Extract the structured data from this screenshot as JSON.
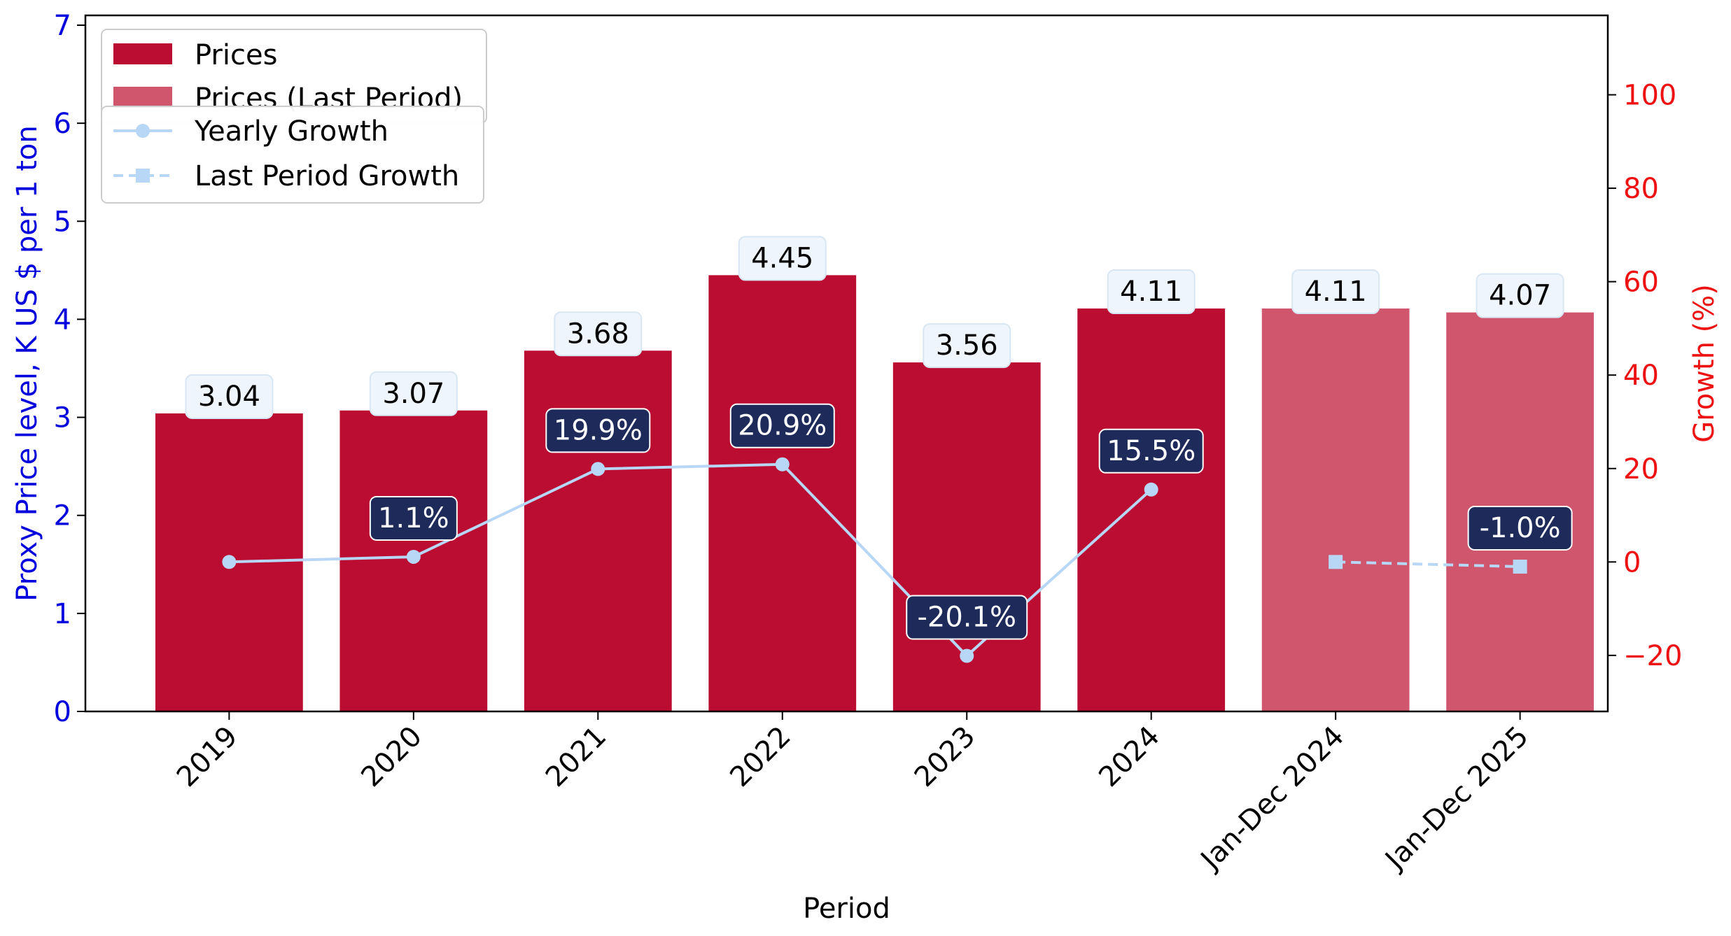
{
  "chart_data": {
    "type": "bar",
    "categories": [
      "2019",
      "2020",
      "2021",
      "2022",
      "2023",
      "2024",
      "Jan-Dec 2024",
      "Jan-Dec 2025"
    ],
    "xlabel": "Period",
    "ylabel": "Proxy Price level, K US $ per 1 ton",
    "y2label": "Growth (%)",
    "ylim": [
      0,
      7.1
    ],
    "y2lim": [
      -32,
      117
    ],
    "yticks": [
      "0",
      "1",
      "2",
      "3",
      "4",
      "5",
      "6",
      "7"
    ],
    "y2ticks": [
      "−20",
      "0",
      "20",
      "40",
      "60",
      "80",
      "100"
    ],
    "series": [
      {
        "name": "Prices",
        "kind": "bar",
        "color": "#bb0c31",
        "values": [
          3.04,
          3.07,
          3.68,
          4.45,
          3.56,
          4.11,
          null,
          null
        ]
      },
      {
        "name": "Prices (Last Period)",
        "kind": "bar",
        "color": "#d0566e",
        "values": [
          null,
          null,
          null,
          null,
          null,
          null,
          4.11,
          4.07
        ]
      },
      {
        "name": "Yearly Growth",
        "kind": "line",
        "axis": "right",
        "color": "#b8d6f5",
        "values": [
          0.0,
          1.1,
          19.9,
          20.9,
          -20.1,
          15.5,
          null,
          null
        ]
      },
      {
        "name": "Last Period Growth",
        "kind": "line",
        "axis": "right",
        "style": "dashed",
        "color": "#b8d6f5",
        "values": [
          null,
          null,
          null,
          null,
          null,
          null,
          0.0,
          -1.0
        ]
      }
    ],
    "bar_labels": [
      "3.04",
      "3.07",
      "3.68",
      "4.45",
      "3.56",
      "4.11",
      "4.11",
      "4.07"
    ],
    "growth_labels": [
      null,
      "1.1%",
      "19.9%",
      "20.9%",
      "-20.1%",
      "15.5%",
      null,
      "-1.0%"
    ],
    "legend": {
      "placement": "top-left",
      "bar_entries": [
        "Prices",
        "Prices (Last Period)"
      ],
      "line_entries": [
        "Yearly Growth",
        "Last Period Growth"
      ]
    },
    "colors": {
      "left_axis": "#0000dd",
      "right_axis": "#ee1111",
      "growth_label_bg": "#1e2a5a",
      "price_label_bg": "#eef5fc"
    }
  }
}
